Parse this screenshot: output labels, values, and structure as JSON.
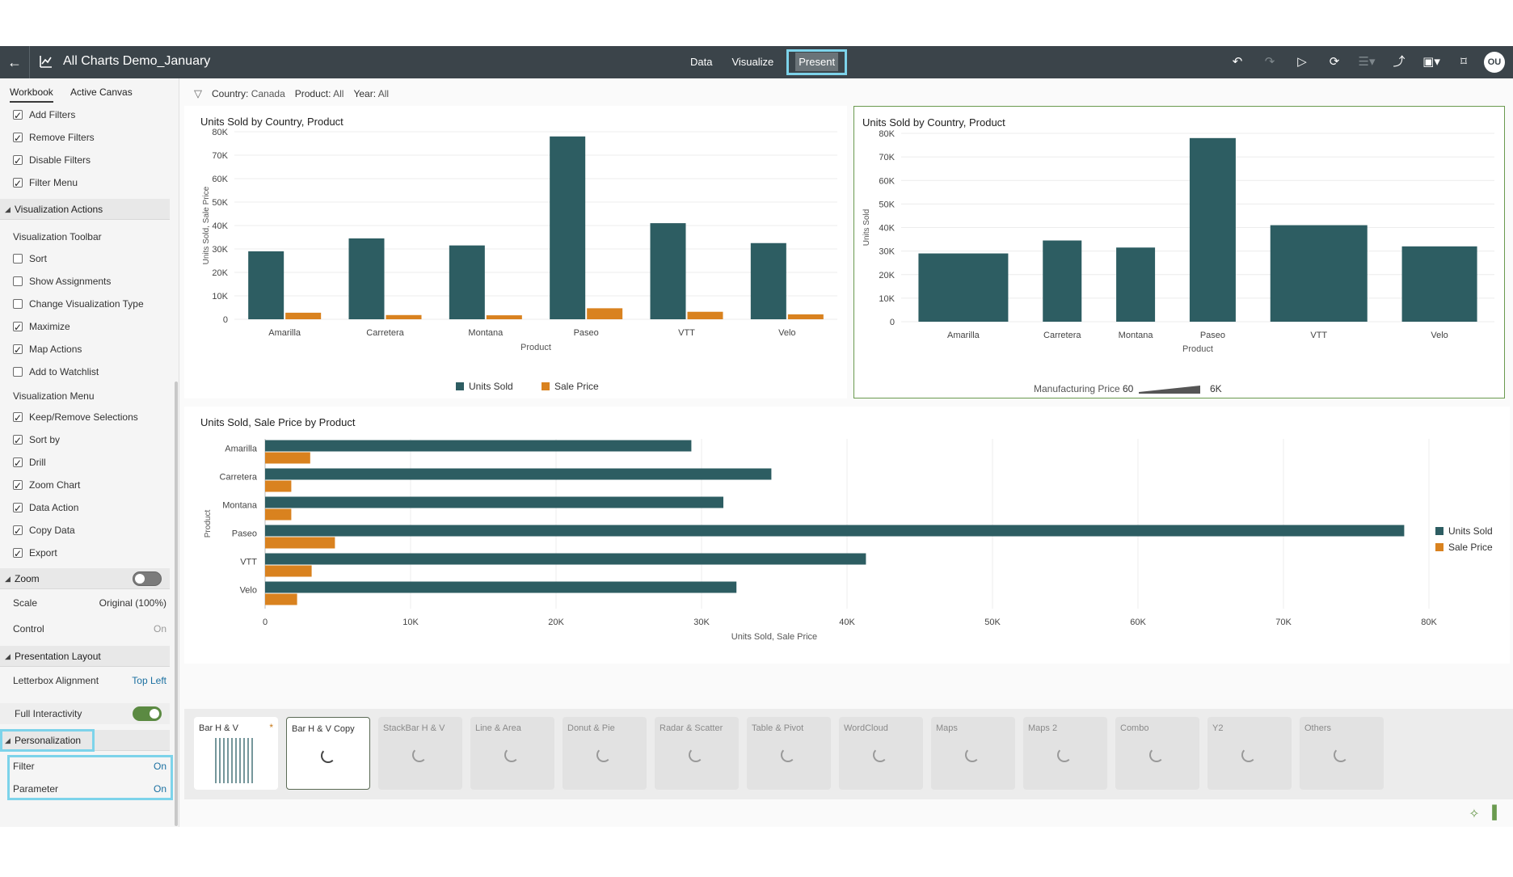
{
  "header": {
    "back_icon": "back-arrow-icon",
    "workbook_icon": "chart-workbook-icon",
    "title": "All Charts Demo_January",
    "modes": [
      {
        "label": "Data",
        "active": false
      },
      {
        "label": "Visualize",
        "active": false
      },
      {
        "label": "Present",
        "active": true
      }
    ],
    "tools": [
      "undo-icon",
      "redo-icon",
      "play-icon",
      "refresh-data-icon",
      "menu-icon",
      "export-icon",
      "save-icon",
      "bookmark-icon"
    ],
    "avatar_initials": "OU"
  },
  "left_panel": {
    "tabs": [
      "Workbook",
      "Active Canvas"
    ],
    "filter_options": [
      {
        "label": "Add Filters",
        "checked": true
      },
      {
        "label": "Remove Filters",
        "checked": true
      },
      {
        "label": "Disable Filters",
        "checked": true
      },
      {
        "label": "Filter Menu",
        "checked": true
      }
    ],
    "viz_actions_section": "Visualization Actions",
    "viz_toolbar_heading": "Visualization Toolbar",
    "viz_toolbar_items": [
      {
        "label": "Sort",
        "checked": false
      },
      {
        "label": "Show Assignments",
        "checked": false
      },
      {
        "label": "Change Visualization Type",
        "checked": false
      },
      {
        "label": "Maximize",
        "checked": true
      },
      {
        "label": "Map Actions",
        "checked": true
      },
      {
        "label": "Add to Watchlist",
        "checked": false
      }
    ],
    "viz_menu_heading": "Visualization Menu",
    "viz_menu_items": [
      {
        "label": "Keep/Remove Selections",
        "checked": true
      },
      {
        "label": "Sort by",
        "checked": true
      },
      {
        "label": "Drill",
        "checked": true
      },
      {
        "label": "Zoom Chart",
        "checked": true
      },
      {
        "label": "Data Action",
        "checked": true
      },
      {
        "label": "Copy Data",
        "checked": true
      },
      {
        "label": "Export",
        "checked": true
      }
    ],
    "zoom_section": "Zoom",
    "scale_label": "Scale",
    "scale_value": "Original (100%)",
    "control_label": "Control",
    "control_value": "On",
    "presentation_section": "Presentation Layout",
    "letterbox_label": "Letterbox Alignment",
    "letterbox_value": "Top Left",
    "full_interactivity_label": "Full Interactivity",
    "personalization_section": "Personalization",
    "filter_label": "Filter",
    "filter_value": "On",
    "parameter_label": "Parameter",
    "parameter_value": "On"
  },
  "filter_bar": {
    "icon": "filter-funnel-icon",
    "filters": [
      {
        "name": "Country:",
        "value": "Canada"
      },
      {
        "name": "Product:",
        "value": "All"
      },
      {
        "name": "Year:",
        "value": "All"
      }
    ]
  },
  "chart_data": [
    {
      "type": "bar",
      "title": "Units Sold by Country, Product",
      "xlabel": "Product",
      "ylabel": "Units Sold, Sale Price",
      "categories": [
        "Amarilla",
        "Carretera",
        "Montana",
        "Paseo",
        "VTT",
        "Velo"
      ],
      "ylim": [
        0,
        80000
      ],
      "yticks": [
        "0",
        "10K",
        "20K",
        "30K",
        "40K",
        "50K",
        "60K",
        "70K",
        "80K"
      ],
      "series": [
        {
          "name": "Units Sold",
          "color": "#2d5d62",
          "values": [
            29000,
            34500,
            31500,
            78000,
            41000,
            32500
          ]
        },
        {
          "name": "Sale Price",
          "color": "#d9821f",
          "values": [
            2800,
            1800,
            1700,
            4700,
            3200,
            2100
          ]
        }
      ],
      "legend": "bottom"
    },
    {
      "type": "bar",
      "title": "Units Sold by Country, Product",
      "xlabel": "Product",
      "ylabel": "Units Sold",
      "categories": [
        "Amarilla",
        "Carretera",
        "Montana",
        "Paseo",
        "VTT",
        "Velo"
      ],
      "ylim": [
        0,
        80000
      ],
      "yticks": [
        "0",
        "10K",
        "20K",
        "30K",
        "40K",
        "50K",
        "60K",
        "70K",
        "80K"
      ],
      "series": [
        {
          "name": "Units Sold",
          "color": "#2d5d62",
          "values": [
            29000,
            34500,
            31500,
            78000,
            41000,
            32000
          ]
        }
      ],
      "bar_width_measure": "Manufacturing Price",
      "bar_width_values": [
        900,
        200,
        200,
        300,
        1000,
        700
      ],
      "size_legend": {
        "label": "Manufacturing Price",
        "min": "60",
        "max": "6K"
      },
      "legend": "bottom"
    },
    {
      "type": "bar",
      "orientation": "horizontal",
      "title": "Units Sold, Sale Price by Product",
      "xlabel": "Units Sold, Sale Price",
      "ylabel": "Product",
      "categories": [
        "Amarilla",
        "Carretera",
        "Montana",
        "Paseo",
        "VTT",
        "Velo"
      ],
      "xlim": [
        0,
        80000
      ],
      "xticks": [
        "0",
        "10K",
        "20K",
        "30K",
        "40K",
        "50K",
        "60K",
        "70K",
        "80K"
      ],
      "series": [
        {
          "name": "Units Sold",
          "color": "#2d5d62",
          "values": [
            29300,
            34800,
            31500,
            78300,
            41300,
            32400
          ]
        },
        {
          "name": "Sale Price",
          "color": "#d9821f",
          "values": [
            3100,
            1800,
            1800,
            4800,
            3200,
            2200
          ]
        }
      ],
      "legend": "right"
    }
  ],
  "canvas_tabs": [
    {
      "label": "Bar H & V",
      "state": "modified"
    },
    {
      "label": "Bar H & V Copy",
      "state": "current"
    },
    {
      "label": "StackBar H & V",
      "state": "loading"
    },
    {
      "label": "Line & Area",
      "state": "loading"
    },
    {
      "label": "Donut & Pie",
      "state": "loading"
    },
    {
      "label": "Radar & Scatter",
      "state": "loading"
    },
    {
      "label": "Table & Pivot",
      "state": "loading"
    },
    {
      "label": "WordCloud",
      "state": "loading"
    },
    {
      "label": "Maps",
      "state": "loading"
    },
    {
      "label": "Maps 2",
      "state": "loading"
    },
    {
      "label": "Combo",
      "state": "loading"
    },
    {
      "label": "Y2",
      "state": "loading"
    },
    {
      "label": "Others",
      "state": "loading"
    }
  ],
  "footer": {
    "icons": [
      "magic-wand-icon",
      "panel-toggle-icon"
    ]
  }
}
